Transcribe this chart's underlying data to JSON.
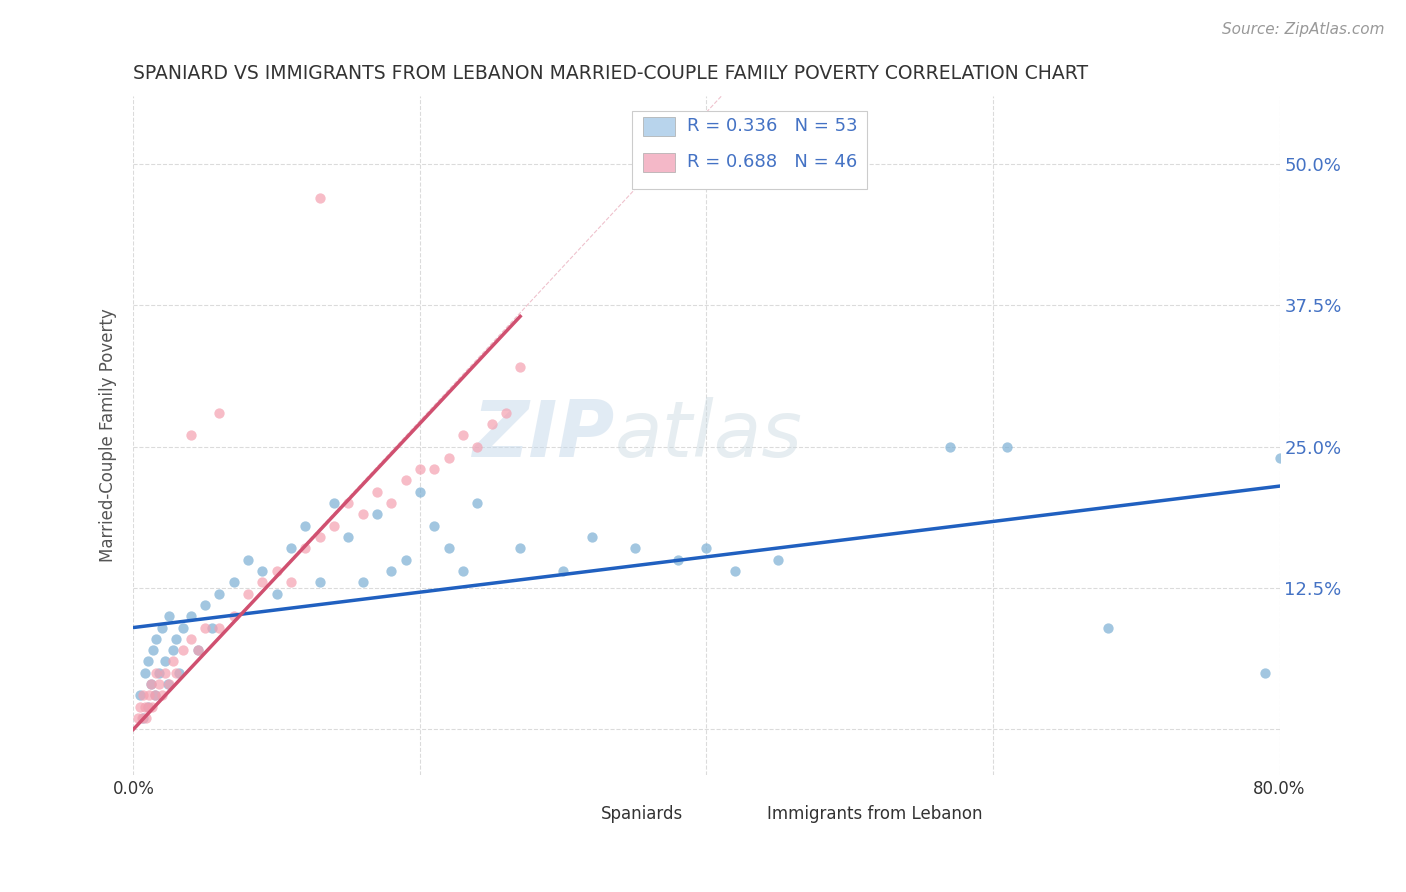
{
  "title": "SPANIARD VS IMMIGRANTS FROM LEBANON MARRIED-COUPLE FAMILY POVERTY CORRELATION CHART",
  "source": "Source: ZipAtlas.com",
  "ylabel": "Married-Couple Family Poverty",
  "xlim": [
    0.0,
    0.8
  ],
  "ylim": [
    -0.04,
    0.56
  ],
  "ytick_vals": [
    0.0,
    0.125,
    0.25,
    0.375,
    0.5
  ],
  "xtick_vals": [
    0.0,
    0.2,
    0.4,
    0.6,
    0.8
  ],
  "dot_color_blue": "#7bafd4",
  "dot_color_pink": "#f4a0b0",
  "line_color_blue": "#2060c0",
  "line_color_pink": "#d05070",
  "legend_box_blue": "#b8d4ec",
  "legend_box_pink": "#f4b8c8",
  "watermark_zip": "ZIP",
  "watermark_atlas": "atlas",
  "title_color": "#333333",
  "tick_label_color_right": "#4472c4",
  "grid_color": "#cccccc",
  "background_color": "#ffffff",
  "blue_line": [
    0.0,
    0.8,
    0.09,
    0.215
  ],
  "pink_line": [
    0.0,
    0.27,
    0.0,
    0.365
  ],
  "pink_dash": [
    0.0,
    0.55,
    0.0,
    0.75
  ]
}
